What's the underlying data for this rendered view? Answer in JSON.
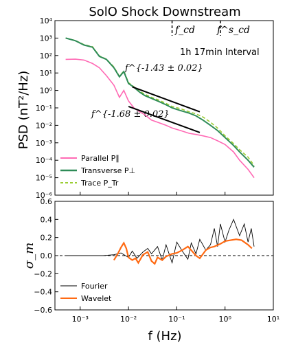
{
  "chart_data": [
    {
      "type": "line",
      "title": "SolO Shock Downstream",
      "xlabel": "f (Hz)",
      "ylabel": "PSD (nT²/Hz)",
      "xscale": "log",
      "yscale": "log",
      "xlim": [
        0.0003,
        10
      ],
      "ylim": [
        1e-06,
        10000
      ],
      "xticks": [
        "10⁻³",
        "10⁻²",
        "10⁻¹",
        "10⁰",
        "10¹"
      ],
      "yticks": [
        "10⁻⁶",
        "10⁻⁵",
        "10⁻⁴",
        "10⁻³",
        "10⁻²",
        "10⁻¹",
        "10⁰",
        "10¹",
        "10²",
        "10³",
        "10⁴"
      ],
      "annotation_interval": "1h 17min Interval",
      "annotation_fcd": "f_cd",
      "annotation_fscd": "f^s_cd",
      "fit_high": {
        "label": "f^{-1.43 ± 0.02}",
        "exponent": -1.43,
        "x": [
          0.012,
          0.3
        ],
        "y": [
          1.6,
          0.06
        ]
      },
      "fit_low": {
        "label": "f^{-1.68 ± 0.02}",
        "exponent": -1.68,
        "x": [
          0.01,
          0.3
        ],
        "y": [
          0.12,
          0.0039
        ]
      },
      "vlines": [
        0.08,
        0.8
      ],
      "legend_position": "bottom-left",
      "series": [
        {
          "name": "Parallel P∥",
          "color": "#ff69b4",
          "x": [
            0.0005,
            0.0008,
            0.0012,
            0.0018,
            0.0025,
            0.0035,
            0.005,
            0.0065,
            0.008,
            0.01,
            0.013,
            0.017,
            0.022,
            0.03,
            0.04,
            0.06,
            0.08,
            0.12,
            0.18,
            0.25,
            0.35,
            0.5,
            0.7,
            1.0,
            1.5,
            2.0,
            3.0,
            4.0
          ],
          "y": [
            60,
            62,
            55,
            35,
            20,
            7,
            2.0,
            0.4,
            1.0,
            0.25,
            0.1,
            0.06,
            0.04,
            0.02,
            0.015,
            0.01,
            0.007,
            0.005,
            0.0035,
            0.003,
            0.0025,
            0.002,
            0.0013,
            0.0008,
            0.0003,
            0.0001,
            3e-05,
            1e-05
          ]
        },
        {
          "name": "Transverse P⊥",
          "color": "#2e8b57",
          "x": [
            0.0005,
            0.0008,
            0.0012,
            0.0018,
            0.0025,
            0.0035,
            0.005,
            0.0065,
            0.008,
            0.01,
            0.013,
            0.017,
            0.022,
            0.03,
            0.04,
            0.06,
            0.08,
            0.12,
            0.18,
            0.25,
            0.35,
            0.5,
            0.7,
            1.0,
            1.5,
            2.0,
            3.0,
            4.0
          ],
          "y": [
            1000,
            700,
            400,
            300,
            90,
            60,
            20,
            6,
            12,
            2.5,
            1.5,
            0.8,
            0.5,
            0.35,
            0.25,
            0.15,
            0.1,
            0.07,
            0.05,
            0.035,
            0.02,
            0.01,
            0.005,
            0.002,
            0.0007,
            0.0003,
            0.0001,
            4e-05
          ]
        },
        {
          "name": "Trace P_Tr",
          "color": "#9acd32",
          "x": [
            0.0005,
            0.0008,
            0.0012,
            0.0018,
            0.0025,
            0.0035,
            0.005,
            0.0065,
            0.008,
            0.01,
            0.013,
            0.017,
            0.022,
            0.03,
            0.04,
            0.06,
            0.08,
            0.12,
            0.18,
            0.25,
            0.35,
            0.5,
            0.7,
            1.0,
            1.5,
            2.0,
            3.0,
            4.0
          ],
          "y": [
            1000,
            720,
            420,
            320,
            95,
            62,
            22,
            6.5,
            13,
            2.8,
            1.6,
            0.9,
            0.6,
            0.4,
            0.3,
            0.18,
            0.12,
            0.09,
            0.06,
            0.045,
            0.03,
            0.015,
            0.007,
            0.0025,
            0.0009,
            0.0004,
            0.00015,
            5e-05
          ]
        }
      ]
    },
    {
      "type": "line",
      "ylabel": "σ_m",
      "xscale": "log",
      "xlim": [
        0.0003,
        10
      ],
      "ylim": [
        -0.6,
        0.6
      ],
      "xticks": [
        "10⁻³",
        "10⁻²",
        "10⁻¹",
        "10⁰",
        "10¹"
      ],
      "yticks": [
        "−0.6",
        "−0.4",
        "−0.2",
        "0.0",
        "0.2",
        "0.4",
        "0.6"
      ],
      "legend_position": "bottom-left",
      "series": [
        {
          "name": "Fourier",
          "color": "#000000",
          "x": [
            0.0005,
            0.001,
            0.002,
            0.003,
            0.005,
            0.007,
            0.01,
            0.012,
            0.015,
            0.02,
            0.025,
            0.03,
            0.04,
            0.05,
            0.06,
            0.08,
            0.1,
            0.13,
            0.17,
            0.2,
            0.25,
            0.3,
            0.4,
            0.5,
            0.6,
            0.7,
            0.8,
            1.0,
            1.2,
            1.5,
            2.0,
            2.5,
            3.0,
            3.5,
            4.0
          ],
          "y": [
            0.0,
            0.0,
            0.0,
            0.0,
            0.01,
            0.03,
            -0.02,
            0.05,
            -0.03,
            0.04,
            0.08,
            0.02,
            0.1,
            -0.05,
            0.12,
            -0.08,
            0.15,
            0.05,
            -0.04,
            0.14,
            0.02,
            0.18,
            0.06,
            0.12,
            0.3,
            0.1,
            0.35,
            0.15,
            0.28,
            0.4,
            0.22,
            0.35,
            0.15,
            0.3,
            0.1
          ]
        },
        {
          "name": "Wavelet",
          "color": "#ff6a13",
          "x": [
            0.005,
            0.006,
            0.007,
            0.008,
            0.009,
            0.01,
            0.012,
            0.014,
            0.016,
            0.02,
            0.025,
            0.03,
            0.035,
            0.04,
            0.05,
            0.06,
            0.08,
            0.1,
            0.13,
            0.17,
            0.2,
            0.25,
            0.3,
            0.4,
            0.5,
            0.6,
            0.8,
            1.0,
            1.3,
            1.7,
            2.2,
            3.0,
            3.6
          ],
          "y": [
            -0.05,
            0.02,
            0.09,
            0.14,
            0.08,
            -0.02,
            -0.05,
            -0.03,
            -0.08,
            0.01,
            0.04,
            -0.06,
            -0.09,
            -0.02,
            -0.05,
            -0.01,
            0.02,
            0.03,
            0.06,
            0.1,
            0.06,
            0.0,
            -0.03,
            0.06,
            0.09,
            0.1,
            0.13,
            0.16,
            0.17,
            0.18,
            0.17,
            0.12,
            0.08
          ]
        }
      ]
    }
  ]
}
